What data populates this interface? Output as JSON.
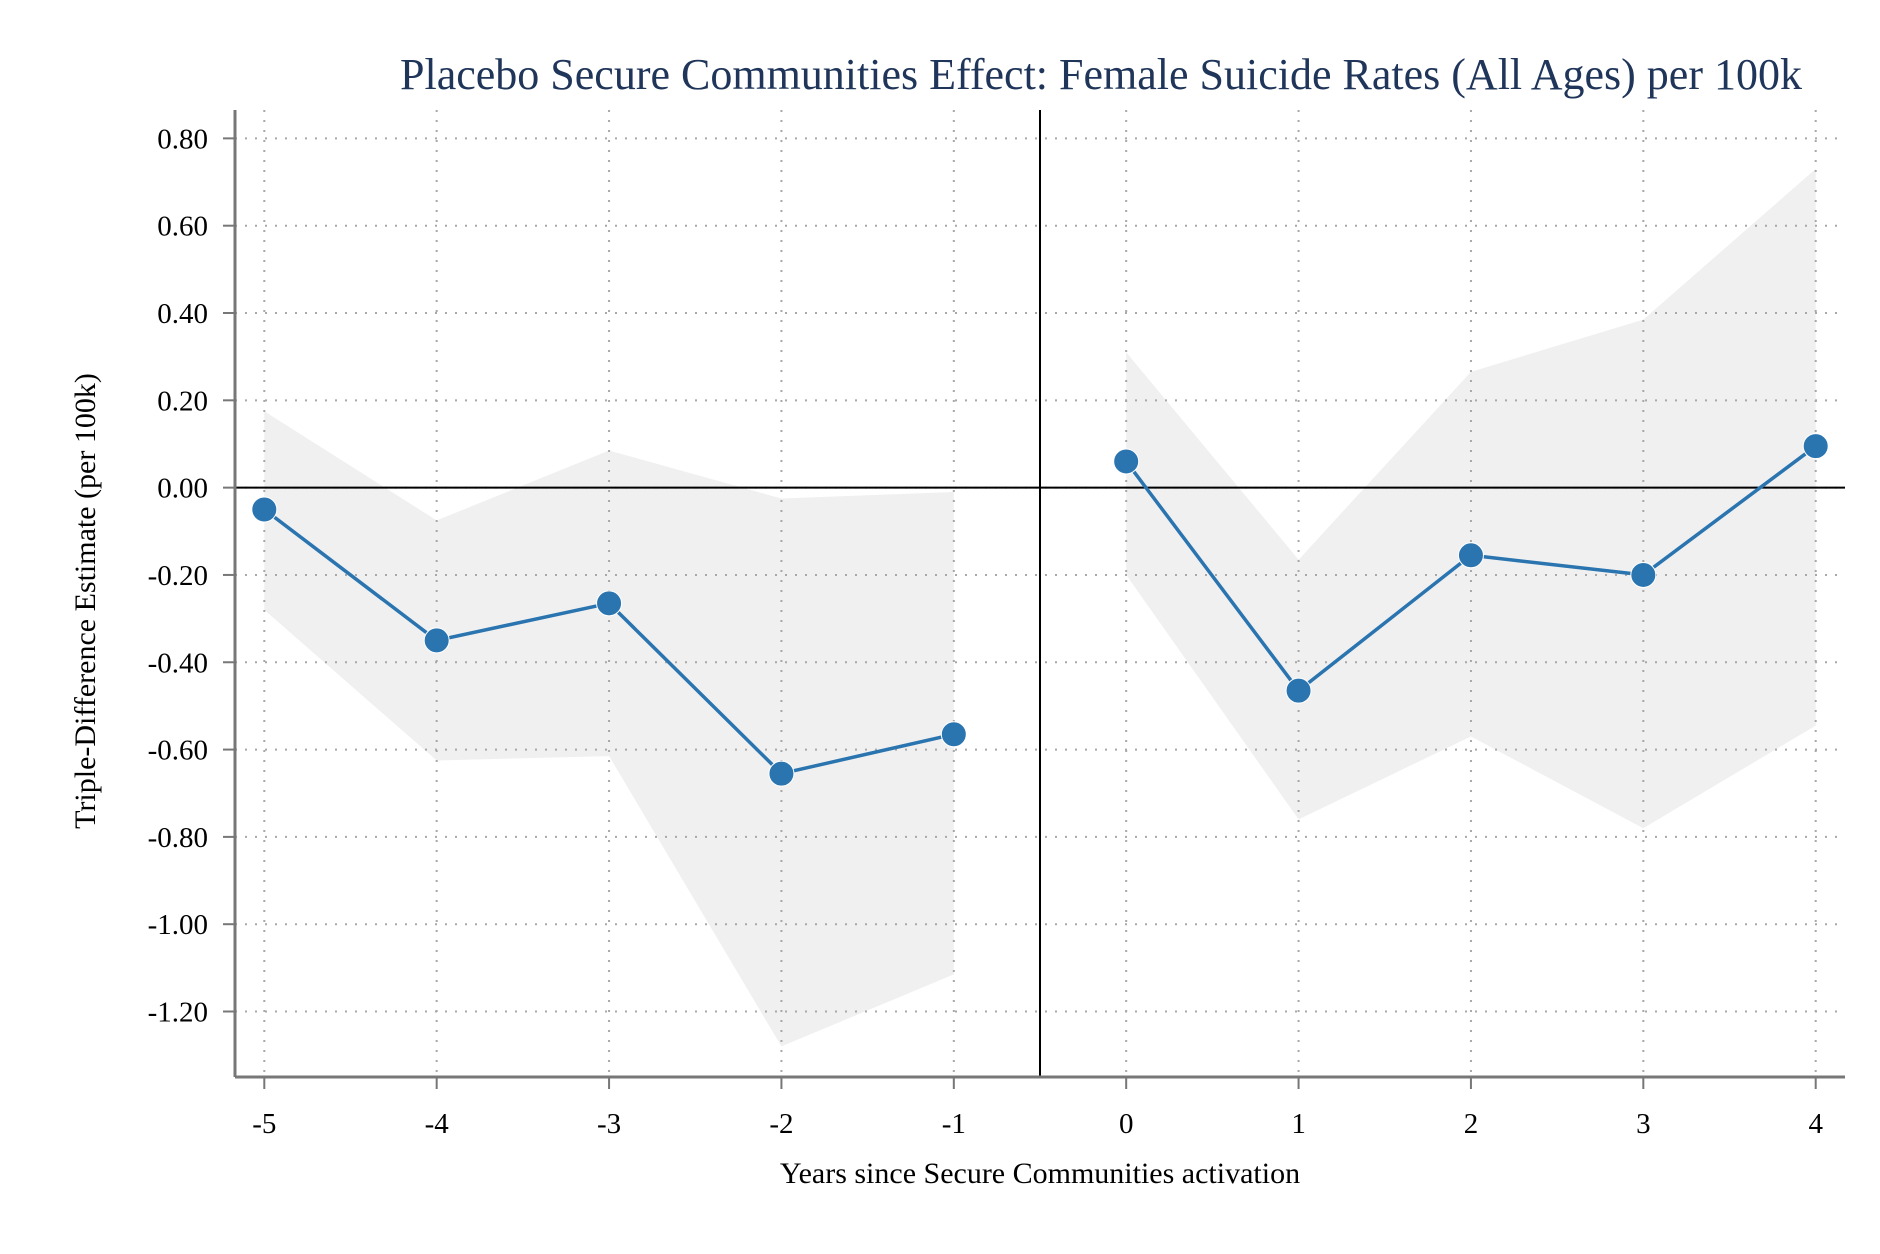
{
  "chart_data": {
    "type": "line",
    "title": "Placebo Secure Communities Effect: Female Suicide Rates (All Ages) per 100k",
    "xlabel": "Years since Secure Communities activation",
    "ylabel": "Triple-Difference Estimate (per 100k)",
    "x_ticks": [
      "-5",
      "-4",
      "-3",
      "-2",
      "-1",
      "0",
      "1",
      "2",
      "3",
      "4"
    ],
    "y_ticks": [
      "0.80",
      "0.60",
      "0.40",
      "0.20",
      "0.00",
      "-0.20",
      "-0.40",
      "-0.60",
      "-0.80",
      "-1.00",
      "-1.20"
    ],
    "y_tick_values": [
      0.8,
      0.6,
      0.4,
      0.2,
      0.0,
      -0.2,
      -0.4,
      -0.6,
      -0.8,
      -1.0,
      -1.2
    ],
    "xlim": [
      -5.17,
      4.17
    ],
    "ylim": [
      -1.35,
      0.865
    ],
    "grid": true,
    "reference_lines": {
      "x": -0.5,
      "y": 0.0
    },
    "segments": [
      {
        "x": [
          -5,
          -4,
          -3,
          -2,
          -1
        ],
        "estimate": [
          -0.05,
          -0.35,
          -0.265,
          -0.655,
          -0.565
        ],
        "ci_low": [
          -0.28,
          -0.625,
          -0.615,
          -1.28,
          -1.115
        ],
        "ci_high": [
          0.175,
          -0.075,
          0.085,
          -0.025,
          -0.01
        ]
      },
      {
        "x": [
          0,
          1,
          2,
          3,
          4
        ],
        "estimate": [
          0.06,
          -0.465,
          -0.155,
          -0.2,
          0.095
        ],
        "ci_low": [
          -0.2,
          -0.76,
          -0.57,
          -0.78,
          -0.545
        ],
        "ci_high": [
          0.31,
          -0.165,
          0.265,
          0.385,
          0.73
        ]
      }
    ],
    "colors": {
      "line": "#2a74b0",
      "marker": "#2a74b0",
      "ci_band": "#f0f0f0",
      "title": "#1f3559",
      "grid": "#a8a8a8",
      "axis": "#777777",
      "reference": "#000000"
    }
  }
}
